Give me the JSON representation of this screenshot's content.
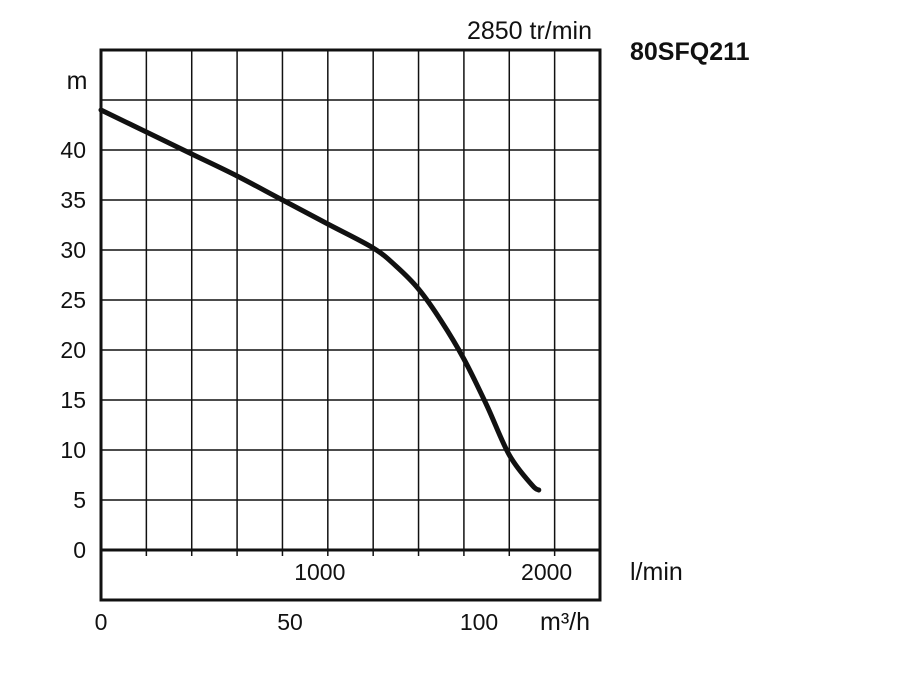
{
  "chart_data": {
    "type": "line",
    "title": "80SFQ211",
    "subtitle": "2850 tr/min",
    "ylabel": "m",
    "xlabel_primary": "l/min",
    "xlabel_secondary": "m³/h",
    "ylim": [
      0,
      50
    ],
    "xlim_lmin": [
      0,
      2200
    ],
    "y_ticks": [
      "0",
      "5",
      "10",
      "15",
      "20",
      "25",
      "30",
      "35",
      "40"
    ],
    "y_tick_values": [
      0,
      5,
      10,
      15,
      20,
      25,
      30,
      35,
      40
    ],
    "x_ticks_lmin": [
      "1000",
      "2000"
    ],
    "x_tick_values_lmin": [
      1000,
      2000
    ],
    "x_ticks_m3h": [
      "0",
      "50",
      "100"
    ],
    "x_tick_values_m3h": [
      0,
      50,
      100
    ],
    "grid": true,
    "series": [
      {
        "color": "#111111",
        "x": [
          0,
          200,
          400,
          600,
          800,
          1000,
          1200,
          1300,
          1400,
          1500,
          1600,
          1700,
          1800,
          1900,
          1930
        ],
        "y": [
          44,
          41.8,
          39.6,
          37.4,
          35,
          32.6,
          30.2,
          28.4,
          26.1,
          22.9,
          19.1,
          14.5,
          9.5,
          6.5,
          6
        ]
      }
    ]
  }
}
